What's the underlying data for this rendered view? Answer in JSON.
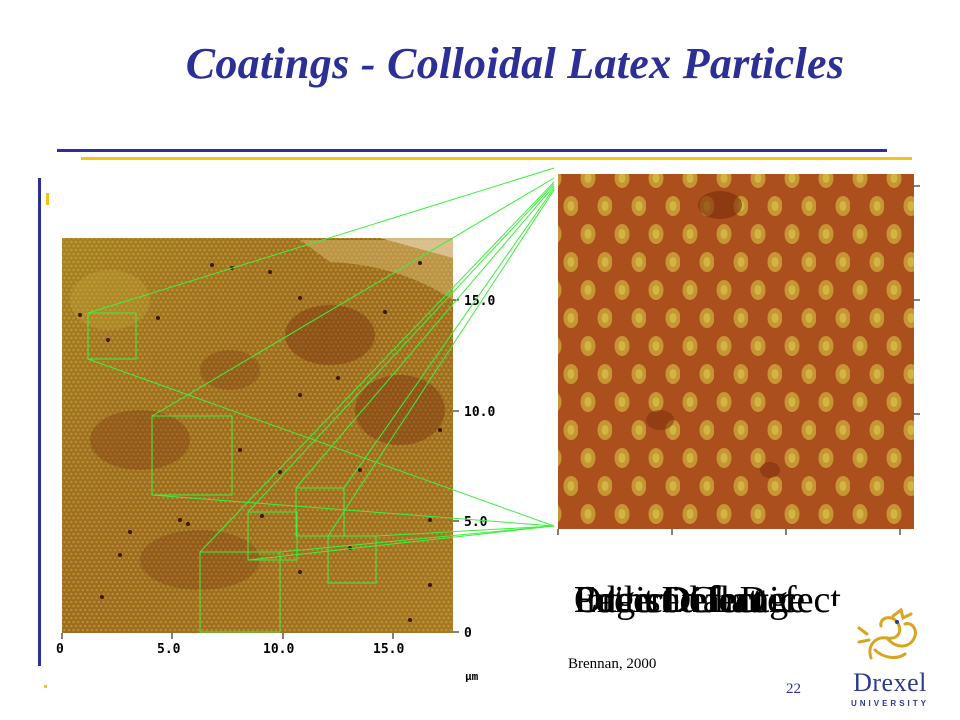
{
  "slide": {
    "title": "Coatings - Colloidal Latex Particles",
    "credit": "Brennan, 2000",
    "page_number": "22"
  },
  "caption_overlay": [
    "Ordered Lattice",
    "Interstitial Defect",
    "Edge Defect",
    "Point Defect",
    "Lattice Change"
  ],
  "afm_main": {
    "y_ticks": [
      "15.0",
      "10.0",
      "5.0",
      "0"
    ],
    "x_ticks": [
      "0",
      "5.0",
      "10.0",
      "15.0"
    ],
    "unit": "µm"
  },
  "logo": {
    "word": "Drexel",
    "subword": "UNIVERSITY"
  },
  "colors": {
    "title": "#2b2f96",
    "accent_gold": "#f0c419",
    "zoom_lines": "#3cf03c"
  }
}
